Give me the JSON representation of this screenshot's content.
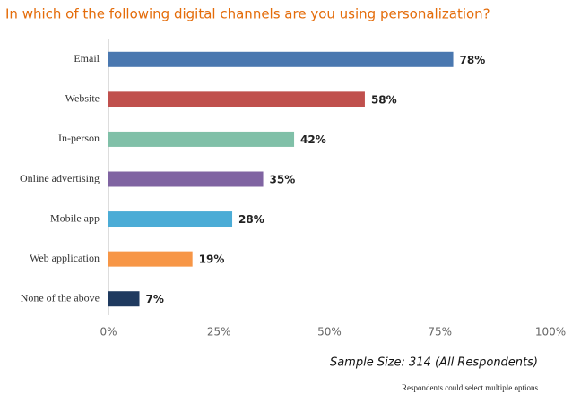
{
  "chart_data": {
    "type": "bar",
    "orientation": "horizontal",
    "title": "In which of the following digital channels are you using personalization?",
    "categories": [
      "Email",
      "Website",
      "In-person",
      "Online advertising",
      "Mobile app",
      "Web application",
      "None of the above"
    ],
    "values": [
      78,
      58,
      42,
      35,
      28,
      19,
      7
    ],
    "value_labels": [
      "78%",
      "58%",
      "42%",
      "35%",
      "28%",
      "19%",
      "7%"
    ],
    "colors": [
      "#4a78b0",
      "#c0504d",
      "#80c0a8",
      "#8064a2",
      "#4bacd6",
      "#f79646",
      "#1f3a5f"
    ],
    "xlim": [
      0,
      100
    ],
    "xticks": [
      {
        "value": 0,
        "label": "0%"
      },
      {
        "value": 25,
        "label": "25%"
      },
      {
        "value": 50,
        "label": "50%"
      },
      {
        "value": 75,
        "label": "75%"
      },
      {
        "value": 100,
        "label": "100%"
      }
    ],
    "grid": false,
    "annotations": [
      "Sample Size: 314 (All Respondents)",
      "Respondents could select multiple options"
    ]
  }
}
